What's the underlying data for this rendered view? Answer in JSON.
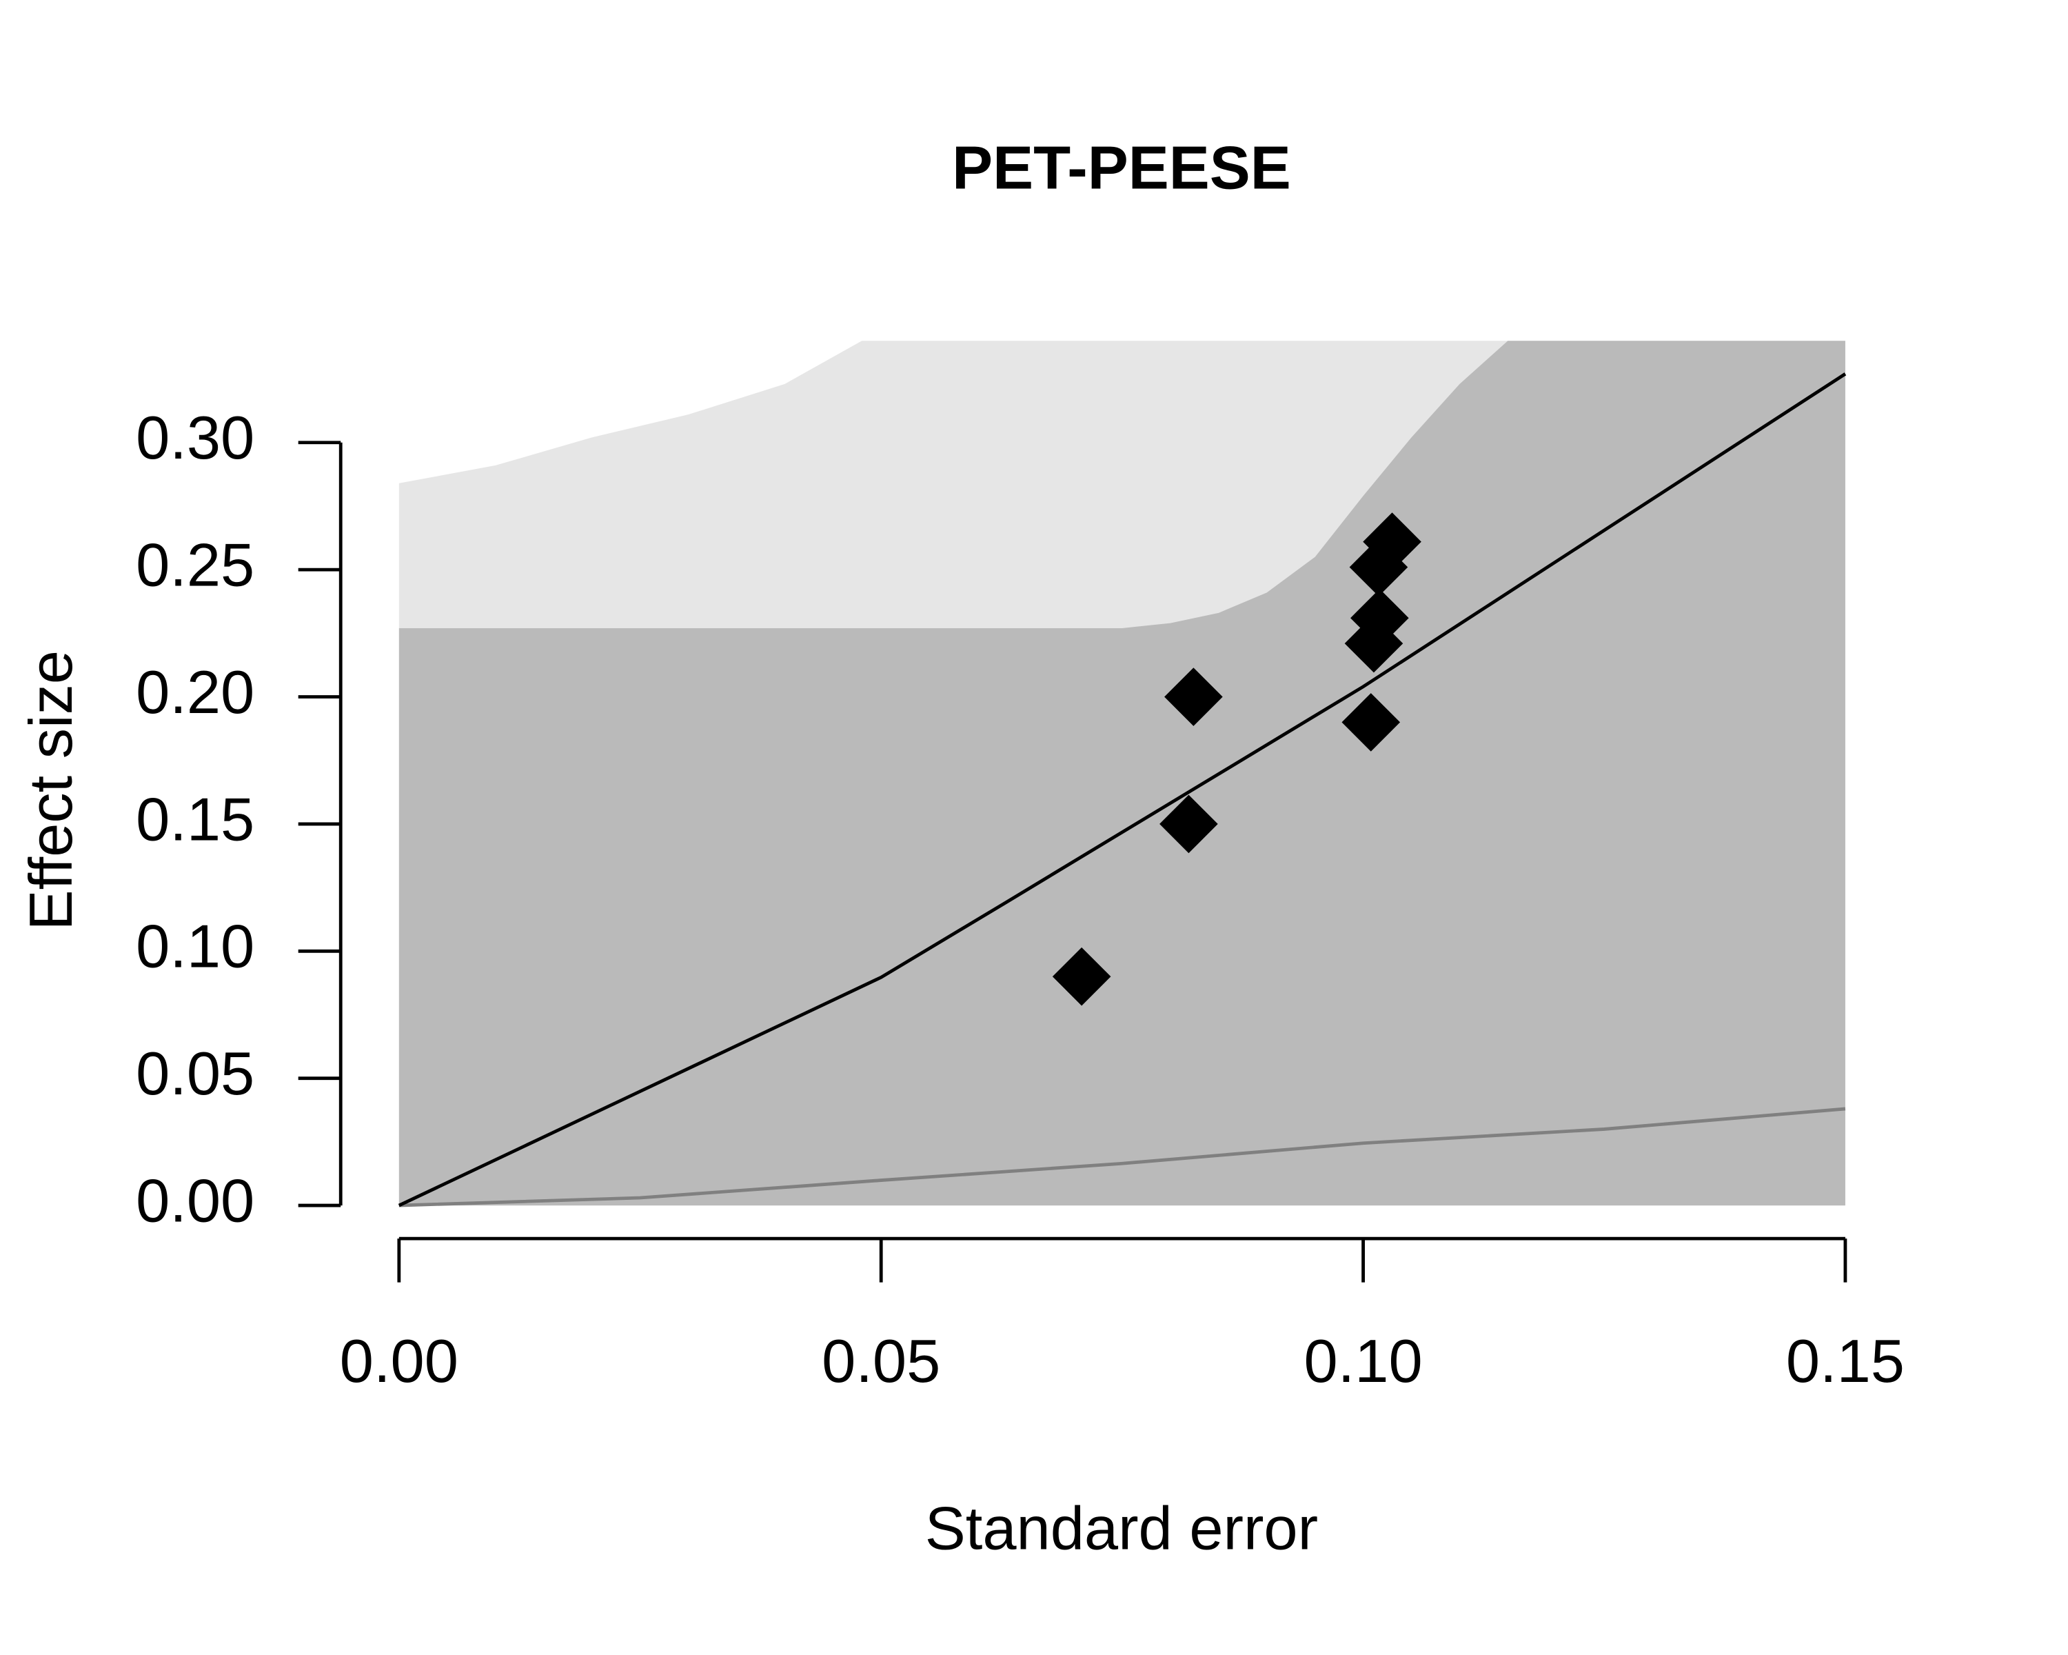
{
  "chart_data": {
    "type": "scatter",
    "title": "PET-PEESE",
    "xlabel": "Standard error",
    "ylabel": "Effect size",
    "xlim": [
      0,
      0.15
    ],
    "ylim": [
      0,
      0.34
    ],
    "xticks": [
      {
        "value": 0,
        "label": "0.00"
      },
      {
        "value": 0.05,
        "label": "0.05"
      },
      {
        "value": 0.1,
        "label": "0.10"
      },
      {
        "value": 0.15,
        "label": "0.15"
      }
    ],
    "yticks": [
      {
        "value": 0,
        "label": "0.00"
      },
      {
        "value": 0.05,
        "label": "0.05"
      },
      {
        "value": 0.1,
        "label": "0.10"
      },
      {
        "value": 0.15,
        "label": "0.15"
      },
      {
        "value": 0.2,
        "label": "0.20"
      },
      {
        "value": 0.25,
        "label": "0.25"
      },
      {
        "value": 0.3,
        "label": "0.30"
      }
    ],
    "series": [
      {
        "type": "area",
        "color": "#e6e6e6",
        "x": [
          0,
          0.01,
          0.02,
          0.03,
          0.04,
          0.048,
          0.15
        ],
        "values": [
          0.284,
          0.291,
          0.302,
          0.311,
          0.323,
          0.34,
          0.34
        ]
      },
      {
        "type": "area",
        "color": "#bababa",
        "x": [
          0,
          0.075,
          0.08,
          0.085,
          0.09,
          0.095,
          0.1,
          0.105,
          0.11,
          0.115,
          0.15
        ],
        "values": [
          0.227,
          0.227,
          0.229,
          0.233,
          0.241,
          0.255,
          0.279,
          0.302,
          0.323,
          0.34,
          0.34
        ]
      },
      {
        "type": "line",
        "color": "#808080",
        "x": [
          0,
          0.025,
          0.05,
          0.075,
          0.1,
          0.125,
          0.15
        ],
        "values": [
          0,
          0.003,
          0.0099,
          0.0165,
          0.0245,
          0.03,
          0.038
        ]
      },
      {
        "type": "line",
        "color": "#000000",
        "x": [
          0,
          0.05,
          0.0631,
          0.1,
          0.15
        ],
        "values": [
          0,
          0.0897,
          0.1195,
          0.204,
          0.327
        ]
      },
      {
        "type": "points",
        "color": "#000000",
        "x": [
          0.0708,
          0.0819,
          0.0824,
          0.1008,
          0.1011,
          0.1017,
          0.1016,
          0.103
        ],
        "values": [
          0.09,
          0.15,
          0.2,
          0.19,
          0.221,
          0.231,
          0.251,
          0.261
        ]
      }
    ]
  }
}
